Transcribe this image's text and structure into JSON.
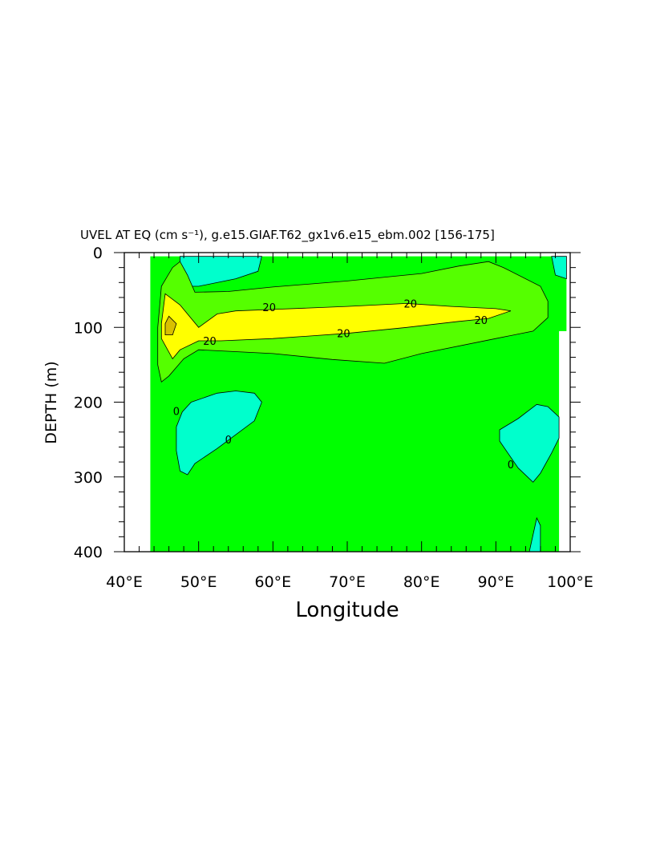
{
  "chart_data": {
    "type": "contour",
    "title": "UVEL AT EQ (cm s⁻¹), g.e15.GIAF.T62_gx1v6.e15_ebm.002 [156-175]",
    "xlabel": "Longitude",
    "ylabel": "DEPTH (m)",
    "xlim": [
      40,
      100
    ],
    "ylim": [
      400,
      0
    ],
    "x_ticks": [
      40,
      50,
      60,
      70,
      80,
      90,
      100
    ],
    "x_tick_labels": [
      "40°E",
      "50°E",
      "60°E",
      "70°E",
      "80°E",
      "90°E",
      "100°E"
    ],
    "y_ticks": [
      0,
      100,
      200,
      300,
      400
    ],
    "y_tick_labels": [
      "0",
      "100",
      "200",
      "300",
      "400"
    ],
    "data_extent": {
      "lon": [
        43.5,
        99.5
      ],
      "depth": [
        5,
        400
      ]
    },
    "contour_line_labels": [
      {
        "text": "20",
        "lon": 59.5,
        "depth": 73
      },
      {
        "text": "20",
        "lon": 51.5,
        "depth": 118
      },
      {
        "text": "20",
        "lon": 69.5,
        "depth": 108
      },
      {
        "text": "20",
        "lon": 78.5,
        "depth": 68
      },
      {
        "text": "20",
        "lon": 88.0,
        "depth": 90
      },
      {
        "text": "0",
        "lon": 47.0,
        "depth": 212
      },
      {
        "text": "0",
        "lon": 54.0,
        "depth": 250
      },
      {
        "text": "0",
        "lon": 92.0,
        "depth": 283
      }
    ],
    "fill_colors": {
      "below_0": "#00ffcc",
      "0_to_10": "#00ff00",
      "10_to_20": "#55ff00",
      "20_to_30": "#ffff00",
      "above_30": "#d8c000"
    },
    "regions": [
      {
        "level": "below_0",
        "points": [
          [
            47.5,
            5
          ],
          [
            58.5,
            5
          ],
          [
            58,
            25
          ],
          [
            55,
            35
          ],
          [
            50,
            45
          ],
          [
            48,
            45
          ],
          [
            47.5,
            35
          ]
        ]
      },
      {
        "level": "below_0",
        "points": [
          [
            97.5,
            5
          ],
          [
            99.5,
            5
          ],
          [
            99.5,
            35
          ],
          [
            98,
            30
          ]
        ]
      },
      {
        "level": "below_0",
        "points": [
          [
            49,
            200
          ],
          [
            52.5,
            188
          ],
          [
            55,
            185
          ],
          [
            57.5,
            188
          ],
          [
            58.5,
            200
          ],
          [
            57.5,
            225
          ],
          [
            52.5,
            262
          ],
          [
            49.5,
            282
          ],
          [
            48.5,
            297
          ],
          [
            47.5,
            292
          ],
          [
            47,
            265
          ],
          [
            47,
            233
          ],
          [
            47.8,
            213
          ]
        ]
      },
      {
        "level": "below_0",
        "points": [
          [
            90.5,
            237
          ],
          [
            93,
            222
          ],
          [
            95.5,
            203
          ],
          [
            97,
            206
          ],
          [
            98.5,
            220
          ],
          [
            98.5,
            248
          ],
          [
            97.5,
            268
          ],
          [
            96,
            295
          ],
          [
            95,
            307
          ],
          [
            93,
            288
          ],
          [
            90.5,
            252
          ]
        ]
      },
      {
        "level": "below_0",
        "points": [
          [
            94.5,
            400
          ],
          [
            95.5,
            355
          ],
          [
            96,
            365
          ],
          [
            96,
            400
          ]
        ]
      },
      {
        "level": "10_to_20",
        "points": [
          [
            44.5,
            100
          ],
          [
            45,
            45
          ],
          [
            46.5,
            20
          ],
          [
            47.5,
            12
          ],
          [
            48.5,
            30
          ],
          [
            49.5,
            53
          ],
          [
            54,
            52
          ],
          [
            60,
            46
          ],
          [
            70,
            38
          ],
          [
            80,
            28
          ],
          [
            85,
            18
          ],
          [
            89,
            12
          ],
          [
            91,
            20
          ],
          [
            96,
            45
          ],
          [
            97,
            65
          ],
          [
            97,
            87
          ],
          [
            95,
            105
          ],
          [
            90,
            115
          ],
          [
            80,
            135
          ],
          [
            75,
            148
          ],
          [
            68,
            143
          ],
          [
            60,
            135
          ],
          [
            50,
            130
          ],
          [
            48,
            142
          ],
          [
            46,
            165
          ],
          [
            45,
            173
          ],
          [
            44.5,
            150
          ]
        ]
      },
      {
        "level": "20_to_30",
        "points": [
          [
            45,
            95
          ],
          [
            45.5,
            55
          ],
          [
            47.5,
            70
          ],
          [
            50,
            100
          ],
          [
            52.5,
            82
          ],
          [
            55,
            78
          ],
          [
            60,
            76
          ],
          [
            70,
            72
          ],
          [
            78,
            68
          ],
          [
            84,
            72
          ],
          [
            90,
            75
          ],
          [
            92,
            78
          ],
          [
            89,
            88
          ],
          [
            85,
            92
          ],
          [
            78,
            100
          ],
          [
            70,
            108
          ],
          [
            60,
            115
          ],
          [
            53,
            118
          ],
          [
            50,
            118
          ],
          [
            47.5,
            130
          ],
          [
            46.5,
            142
          ],
          [
            45,
            115
          ]
        ]
      },
      {
        "level": "above_30",
        "points": [
          [
            45.5,
            95
          ],
          [
            46,
            85
          ],
          [
            47,
            95
          ],
          [
            46.5,
            110
          ],
          [
            45.5,
            110
          ]
        ]
      }
    ]
  }
}
